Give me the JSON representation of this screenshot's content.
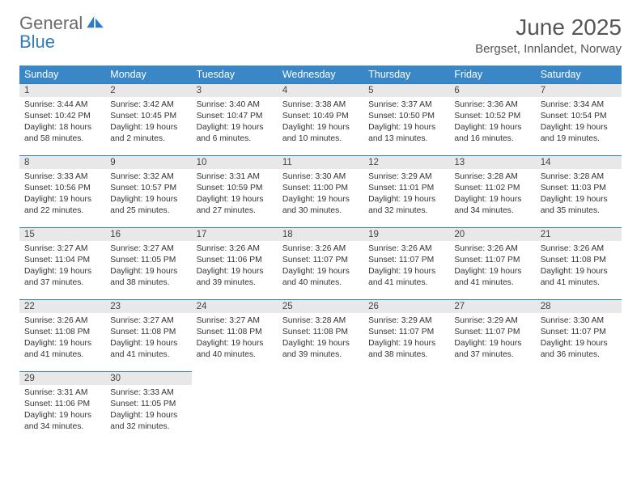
{
  "brand": {
    "word1": "General",
    "word2": "Blue"
  },
  "title": "June 2025",
  "location": "Bergset, Innlandet, Norway",
  "colors": {
    "header_bg": "#3a87c7",
    "daynum_bg": "#e8e8e8",
    "daynum_border": "#2f7dc0",
    "text": "#333333"
  },
  "weekdays": [
    "Sunday",
    "Monday",
    "Tuesday",
    "Wednesday",
    "Thursday",
    "Friday",
    "Saturday"
  ],
  "days": [
    {
      "n": 1,
      "sunrise": "3:44 AM",
      "sunset": "10:42 PM",
      "daylight": "18 hours and 58 minutes."
    },
    {
      "n": 2,
      "sunrise": "3:42 AM",
      "sunset": "10:45 PM",
      "daylight": "19 hours and 2 minutes."
    },
    {
      "n": 3,
      "sunrise": "3:40 AM",
      "sunset": "10:47 PM",
      "daylight": "19 hours and 6 minutes."
    },
    {
      "n": 4,
      "sunrise": "3:38 AM",
      "sunset": "10:49 PM",
      "daylight": "19 hours and 10 minutes."
    },
    {
      "n": 5,
      "sunrise": "3:37 AM",
      "sunset": "10:50 PM",
      "daylight": "19 hours and 13 minutes."
    },
    {
      "n": 6,
      "sunrise": "3:36 AM",
      "sunset": "10:52 PM",
      "daylight": "19 hours and 16 minutes."
    },
    {
      "n": 7,
      "sunrise": "3:34 AM",
      "sunset": "10:54 PM",
      "daylight": "19 hours and 19 minutes."
    },
    {
      "n": 8,
      "sunrise": "3:33 AM",
      "sunset": "10:56 PM",
      "daylight": "19 hours and 22 minutes."
    },
    {
      "n": 9,
      "sunrise": "3:32 AM",
      "sunset": "10:57 PM",
      "daylight": "19 hours and 25 minutes."
    },
    {
      "n": 10,
      "sunrise": "3:31 AM",
      "sunset": "10:59 PM",
      "daylight": "19 hours and 27 minutes."
    },
    {
      "n": 11,
      "sunrise": "3:30 AM",
      "sunset": "11:00 PM",
      "daylight": "19 hours and 30 minutes."
    },
    {
      "n": 12,
      "sunrise": "3:29 AM",
      "sunset": "11:01 PM",
      "daylight": "19 hours and 32 minutes."
    },
    {
      "n": 13,
      "sunrise": "3:28 AM",
      "sunset": "11:02 PM",
      "daylight": "19 hours and 34 minutes."
    },
    {
      "n": 14,
      "sunrise": "3:28 AM",
      "sunset": "11:03 PM",
      "daylight": "19 hours and 35 minutes."
    },
    {
      "n": 15,
      "sunrise": "3:27 AM",
      "sunset": "11:04 PM",
      "daylight": "19 hours and 37 minutes."
    },
    {
      "n": 16,
      "sunrise": "3:27 AM",
      "sunset": "11:05 PM",
      "daylight": "19 hours and 38 minutes."
    },
    {
      "n": 17,
      "sunrise": "3:26 AM",
      "sunset": "11:06 PM",
      "daylight": "19 hours and 39 minutes."
    },
    {
      "n": 18,
      "sunrise": "3:26 AM",
      "sunset": "11:07 PM",
      "daylight": "19 hours and 40 minutes."
    },
    {
      "n": 19,
      "sunrise": "3:26 AM",
      "sunset": "11:07 PM",
      "daylight": "19 hours and 41 minutes."
    },
    {
      "n": 20,
      "sunrise": "3:26 AM",
      "sunset": "11:07 PM",
      "daylight": "19 hours and 41 minutes."
    },
    {
      "n": 21,
      "sunrise": "3:26 AM",
      "sunset": "11:08 PM",
      "daylight": "19 hours and 41 minutes."
    },
    {
      "n": 22,
      "sunrise": "3:26 AM",
      "sunset": "11:08 PM",
      "daylight": "19 hours and 41 minutes."
    },
    {
      "n": 23,
      "sunrise": "3:27 AM",
      "sunset": "11:08 PM",
      "daylight": "19 hours and 41 minutes."
    },
    {
      "n": 24,
      "sunrise": "3:27 AM",
      "sunset": "11:08 PM",
      "daylight": "19 hours and 40 minutes."
    },
    {
      "n": 25,
      "sunrise": "3:28 AM",
      "sunset": "11:08 PM",
      "daylight": "19 hours and 39 minutes."
    },
    {
      "n": 26,
      "sunrise": "3:29 AM",
      "sunset": "11:07 PM",
      "daylight": "19 hours and 38 minutes."
    },
    {
      "n": 27,
      "sunrise": "3:29 AM",
      "sunset": "11:07 PM",
      "daylight": "19 hours and 37 minutes."
    },
    {
      "n": 28,
      "sunrise": "3:30 AM",
      "sunset": "11:07 PM",
      "daylight": "19 hours and 36 minutes."
    },
    {
      "n": 29,
      "sunrise": "3:31 AM",
      "sunset": "11:06 PM",
      "daylight": "19 hours and 34 minutes."
    },
    {
      "n": 30,
      "sunrise": "3:33 AM",
      "sunset": "11:05 PM",
      "daylight": "19 hours and 32 minutes."
    }
  ],
  "labels": {
    "sunrise": "Sunrise:",
    "sunset": "Sunset:",
    "daylight": "Daylight:"
  },
  "start_weekday": 0,
  "rows": 5,
  "cols": 7
}
